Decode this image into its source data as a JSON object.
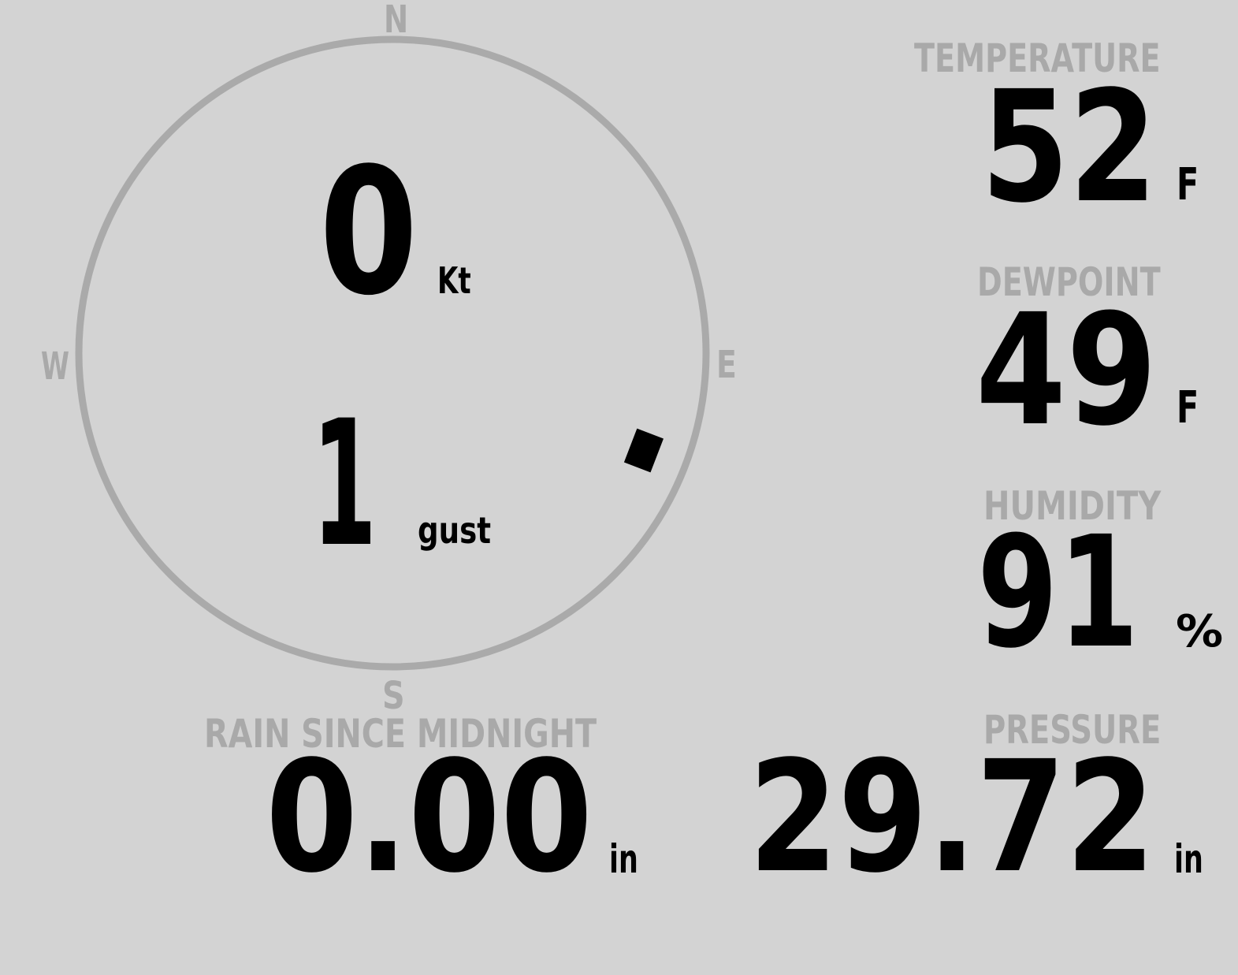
{
  "colors": {
    "background": "#d3d3d3",
    "label": "#a9a9a9",
    "value": "#000000",
    "ring": "#aaaaaa"
  },
  "wind": {
    "compass": {
      "north": "N",
      "east": "E",
      "south": "S",
      "west": "W"
    },
    "speed": "0",
    "speed_unit": "Kt",
    "gust": "1",
    "gust_unit": "gust",
    "direction_degrees": 111
  },
  "temperature": {
    "label": "TEMPERATURE",
    "value": "52",
    "unit": "F"
  },
  "dewpoint": {
    "label": "DEWPOINT",
    "value": "49",
    "unit": "F"
  },
  "humidity": {
    "label": "HUMIDITY",
    "value": "91",
    "unit": "%"
  },
  "rain": {
    "label": "RAIN SINCE MIDNIGHT",
    "value": "0.00",
    "unit": "in"
  },
  "pressure": {
    "label": "PRESSURE",
    "value": "29.72",
    "unit": "in"
  }
}
